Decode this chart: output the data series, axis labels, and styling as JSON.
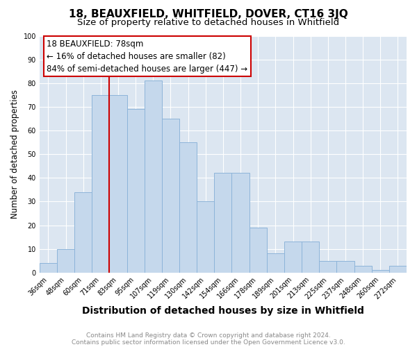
{
  "title": "18, BEAUXFIELD, WHITFIELD, DOVER, CT16 3JQ",
  "subtitle": "Size of property relative to detached houses in Whitfield",
  "xlabel": "Distribution of detached houses by size in Whitfield",
  "ylabel": "Number of detached properties",
  "categories": [
    "36sqm",
    "48sqm",
    "60sqm",
    "71sqm",
    "83sqm",
    "95sqm",
    "107sqm",
    "119sqm",
    "130sqm",
    "142sqm",
    "154sqm",
    "166sqm",
    "178sqm",
    "189sqm",
    "201sqm",
    "213sqm",
    "225sqm",
    "237sqm",
    "248sqm",
    "260sqm",
    "272sqm"
  ],
  "values": [
    4,
    10,
    34,
    75,
    75,
    69,
    81,
    65,
    55,
    30,
    42,
    42,
    19,
    8,
    13,
    13,
    5,
    5,
    3,
    1,
    3
  ],
  "bar_color": "#c5d8ec",
  "bar_edge_color": "#8db4d9",
  "vline_color": "#cc0000",
  "annotation_text": "18 BEAUXFIELD: 78sqm\n← 16% of detached houses are smaller (82)\n84% of semi-detached houses are larger (447) →",
  "annotation_box_color": "#cc0000",
  "ylim": [
    0,
    100
  ],
  "yticks": [
    0,
    10,
    20,
    30,
    40,
    50,
    60,
    70,
    80,
    90,
    100
  ],
  "grid_color": "#c5d8ec",
  "plot_bg_color": "#dce6f1",
  "footnote1": "Contains HM Land Registry data © Crown copyright and database right 2024.",
  "footnote2": "Contains public sector information licensed under the Open Government Licence v3.0.",
  "footnote_color": "#888888",
  "title_fontsize": 11,
  "subtitle_fontsize": 9.5,
  "xlabel_fontsize": 10,
  "ylabel_fontsize": 8.5,
  "tick_fontsize": 7,
  "annot_fontsize": 8.5
}
